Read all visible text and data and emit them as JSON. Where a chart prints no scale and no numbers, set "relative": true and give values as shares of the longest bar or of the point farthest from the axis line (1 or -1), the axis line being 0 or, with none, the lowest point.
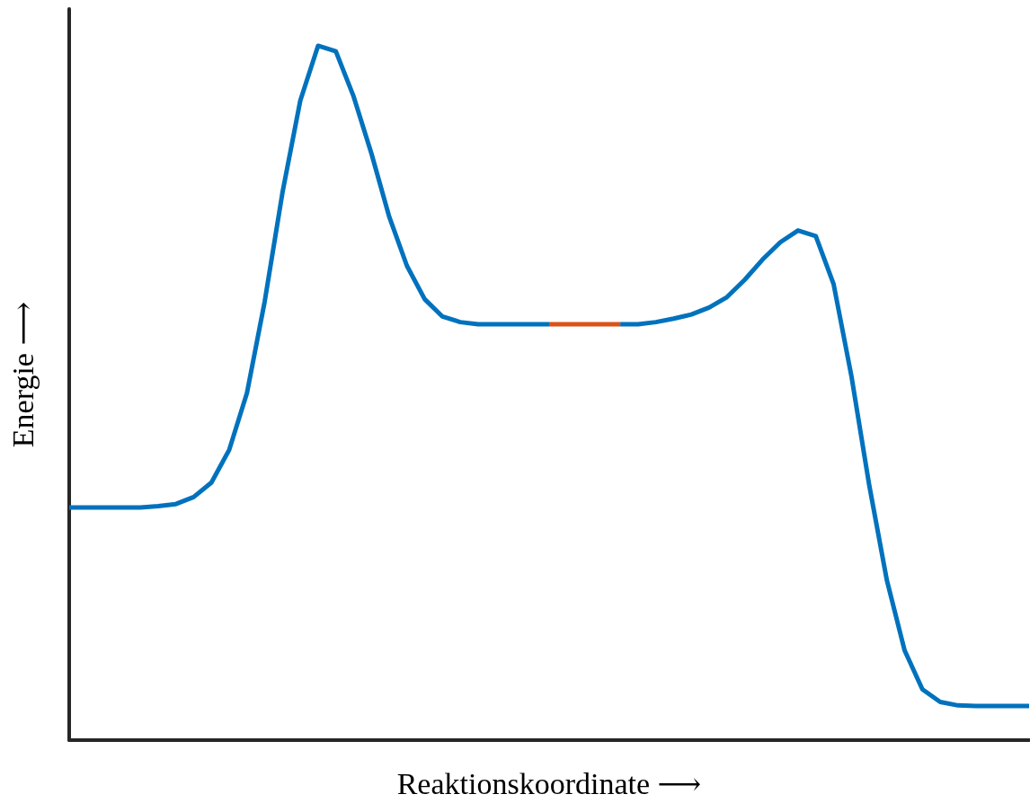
{
  "chart_data": {
    "type": "line",
    "xlabel": "Reaktionskoordinate ⟶",
    "ylabel": "Energie ⟶",
    "relative": true,
    "grid": false,
    "marker": "none",
    "line_style": "solid",
    "categories": [
      null,
      null,
      null,
      null,
      null,
      null,
      null,
      null,
      null,
      null,
      null,
      null,
      null,
      null,
      null,
      null,
      null,
      null,
      null,
      null,
      null,
      null,
      null,
      null,
      null,
      null,
      null,
      null,
      null,
      null,
      null,
      null,
      null,
      null,
      null,
      null,
      null,
      null,
      null,
      null,
      null,
      null,
      null,
      null,
      null,
      null,
      null,
      null,
      null,
      null,
      null,
      null,
      null,
      null,
      null
    ],
    "series": [
      {
        "color": "#0072bd",
        "values": [
          0.335,
          0.335,
          0.335,
          0.335,
          0.335,
          0.337,
          0.34,
          0.35,
          0.371,
          0.418,
          0.5,
          0.632,
          0.789,
          0.921,
          1,
          0.992,
          0.927,
          0.845,
          0.754,
          0.683,
          0.635,
          0.61,
          0.602,
          0.599,
          0.599,
          0.599,
          0.599,
          0.599,
          null,
          null,
          null,
          0.599,
          0.599,
          0.602,
          0.607,
          0.613,
          0.623,
          0.638,
          0.663,
          0.692,
          0.717,
          0.734,
          0.726,
          0.657,
          0.525,
          0.368,
          0.23,
          0.129,
          0.073,
          0.055,
          0.05,
          0.049,
          0.049,
          0.049,
          0.049
        ]
      },
      {
        "color": "#d95319",
        "values": [
          null,
          null,
          null,
          null,
          null,
          null,
          null,
          null,
          null,
          null,
          null,
          null,
          null,
          null,
          null,
          null,
          null,
          null,
          null,
          null,
          null,
          null,
          null,
          null,
          null,
          null,
          null,
          0.599,
          0.599,
          0.599,
          0.599,
          0.599,
          null,
          null,
          null,
          null,
          null,
          null,
          null,
          null,
          null,
          null,
          null,
          null,
          null,
          null,
          null,
          null,
          null,
          null,
          null,
          null,
          null,
          null,
          null
        ]
      }
    ]
  }
}
